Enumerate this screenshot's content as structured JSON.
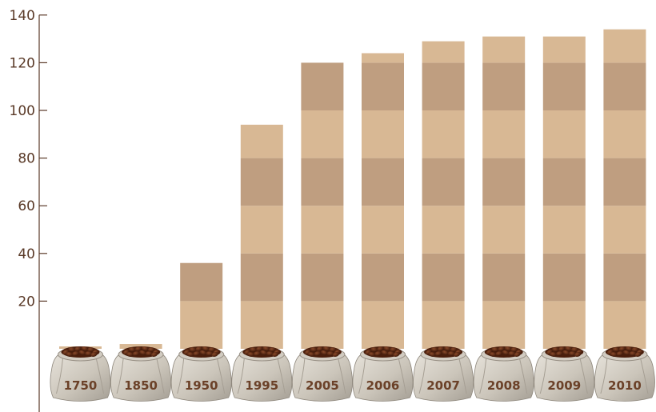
{
  "chart_data": {
    "type": "bar",
    "title": "",
    "xlabel": "",
    "ylabel": "",
    "ylim": [
      0,
      140
    ],
    "yticks": [
      20,
      40,
      60,
      80,
      100,
      120,
      140
    ],
    "categories": [
      "1750",
      "1850",
      "1950",
      "1995",
      "2005",
      "2006",
      "2007",
      "2008",
      "2009",
      "2010"
    ],
    "values": [
      1,
      2,
      36,
      94,
      120,
      124,
      129,
      131,
      131,
      134
    ],
    "grid": false,
    "legend": "none",
    "colors": {
      "light": "#d8b894",
      "dark": "#bf9e80",
      "axis": "#5a3a28",
      "text": "#6b4128"
    },
    "marker_icon": "coffee-bean-sack-icon"
  }
}
